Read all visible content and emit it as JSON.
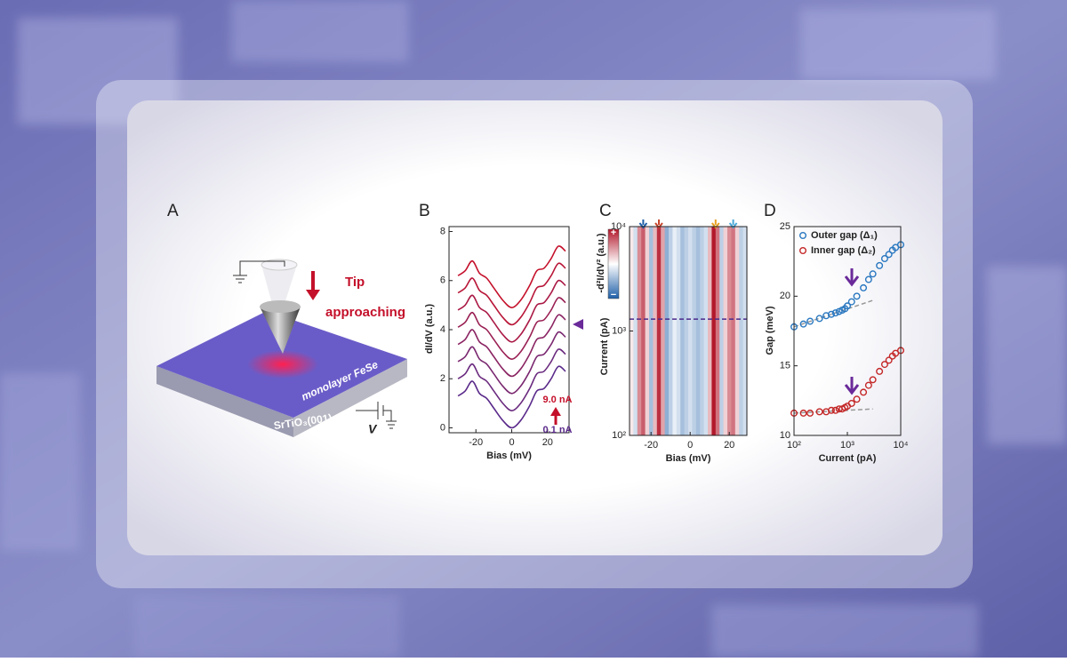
{
  "panel_a": {
    "label": "A",
    "tip_label": [
      "Tip",
      "approaching"
    ],
    "layer_label": "monolayer FeSe",
    "substrate_label": "SrTiO₃(001)",
    "voltage_label": "V"
  },
  "chart_data": [
    {
      "type": "line",
      "panel_label": "B",
      "x_label": "Bias (mV)",
      "y_label": "dI/dV (a.u.)",
      "x": [
        -30,
        -26,
        -22,
        -18,
        -14,
        -10,
        -5,
        0,
        5,
        10,
        14,
        18,
        22,
        26,
        30
      ],
      "series": [
        {
          "color": "#5a2a8a",
          "values": [
            1.3,
            1.5,
            1.9,
            1.4,
            1.2,
            0.8,
            0.3,
            0.0,
            0.3,
            0.9,
            1.5,
            1.6,
            2.0,
            2.5,
            2.3
          ]
        },
        {
          "color": "#6a2a7e",
          "values": [
            2.0,
            2.2,
            2.6,
            2.1,
            1.9,
            1.5,
            1.0,
            0.7,
            1.0,
            1.6,
            2.2,
            2.3,
            2.7,
            3.2,
            3.0
          ]
        },
        {
          "color": "#7a2870",
          "values": [
            2.7,
            2.9,
            3.3,
            2.8,
            2.6,
            2.2,
            1.7,
            1.4,
            1.7,
            2.3,
            2.9,
            3.0,
            3.4,
            3.9,
            3.7
          ]
        },
        {
          "color": "#8a2462",
          "values": [
            3.4,
            3.6,
            4.0,
            3.5,
            3.3,
            2.9,
            2.4,
            2.1,
            2.4,
            3.0,
            3.6,
            3.7,
            4.1,
            4.6,
            4.4
          ]
        },
        {
          "color": "#9a2054",
          "values": [
            4.1,
            4.3,
            4.7,
            4.2,
            4.0,
            3.6,
            3.1,
            2.8,
            3.1,
            3.7,
            4.3,
            4.4,
            4.8,
            5.3,
            5.1
          ]
        },
        {
          "color": "#aa1a46",
          "values": [
            4.8,
            5.0,
            5.4,
            4.9,
            4.7,
            4.3,
            3.8,
            3.5,
            3.8,
            4.4,
            5.0,
            5.1,
            5.5,
            6.0,
            5.8
          ]
        },
        {
          "color": "#b81638",
          "values": [
            5.5,
            5.7,
            6.1,
            5.6,
            5.4,
            5.0,
            4.5,
            4.2,
            4.5,
            5.1,
            5.7,
            5.8,
            6.2,
            6.7,
            6.5
          ]
        },
        {
          "color": "#c4102a",
          "values": [
            6.2,
            6.4,
            6.8,
            6.3,
            6.1,
            5.7,
            5.2,
            4.9,
            5.2,
            5.8,
            6.4,
            6.5,
            6.9,
            7.4,
            7.2
          ]
        }
      ],
      "xlim": [
        -35,
        32
      ],
      "xticks": [
        -20,
        0,
        20
      ],
      "ylim": [
        -0.2,
        8.2
      ],
      "yticks": [
        0,
        2,
        4,
        6,
        8
      ],
      "annotations": [
        {
          "text": "9.0 nA",
          "color": "#c4102a"
        },
        {
          "text": "0.1 nA",
          "color": "#5a2a8a"
        }
      ]
    },
    {
      "type": "heatmap",
      "panel_label": "C",
      "x_label": "Bias (mV)",
      "y_label": "Current (pA)",
      "colorbar_label": "-d²I/dV² (a.u.)",
      "x": [
        -30,
        -28,
        -26,
        -24,
        -22,
        -20,
        -18,
        -16,
        -14,
        -12,
        -10,
        -8,
        -6,
        -4,
        -2,
        0,
        2,
        4,
        6,
        8,
        10,
        12,
        14,
        16,
        18,
        20,
        22,
        24,
        26,
        28
      ],
      "z": [
        0.1,
        -0.2,
        0.5,
        0.7,
        0.2,
        -0.4,
        0.3,
        0.9,
        0.4,
        -0.5,
        -0.3,
        -0.1,
        -0.2,
        -0.4,
        -0.3,
        -0.2,
        -0.3,
        -0.4,
        -0.3,
        -0.2,
        0.3,
        1.0,
        0.6,
        -0.3,
        0.2,
        0.5,
        0.6,
        0.2,
        -0.3,
        -0.2
      ],
      "xlim": [
        -31,
        29
      ],
      "xticks": [
        -20,
        0,
        20
      ],
      "y_scale": "log",
      "ylim": [
        100,
        10000
      ],
      "yticks": [
        {
          "value": 100,
          "label": "10²"
        },
        {
          "value": 1000,
          "label": "10³"
        },
        {
          "value": 10000,
          "label": "10⁴"
        }
      ],
      "zlim": [
        -1,
        1
      ],
      "zticks": [
        {
          "value": 1,
          "label": "+"
        },
        {
          "value": -1,
          "label": "−"
        }
      ],
      "reference_line": 1300,
      "reference_color": "#4b2a8c",
      "markers": [
        {
          "x": -24,
          "color": "#1f5fa8"
        },
        {
          "x": -16,
          "color": "#c8452a"
        },
        {
          "x": 13,
          "color": "#e8a020"
        },
        {
          "x": 22,
          "color": "#4aa8d8"
        }
      ]
    },
    {
      "type": "scatter",
      "panel_label": "D",
      "x_label": "Current (pA)",
      "y_label": "Gap (meV)",
      "x_scale": "log",
      "x": [
        100,
        150,
        200,
        300,
        400,
        500,
        600,
        700,
        800,
        900,
        1000,
        1200,
        1500,
        2000,
        2500,
        3000,
        4000,
        5000,
        6000,
        7000,
        8000,
        10000
      ],
      "series": [
        {
          "name": "Outer gap (Δ₁)",
          "color": "#2a78c0",
          "values": [
            17.8,
            18.0,
            18.2,
            18.4,
            18.6,
            18.7,
            18.8,
            18.9,
            19.0,
            19.1,
            19.3,
            19.6,
            20.0,
            20.6,
            21.2,
            21.6,
            22.2,
            22.7,
            23.0,
            23.3,
            23.5,
            23.7
          ]
        },
        {
          "name": "Inner gap (Δ₂)",
          "color": "#c42828",
          "values": [
            11.6,
            11.6,
            11.6,
            11.7,
            11.7,
            11.8,
            11.8,
            11.9,
            11.9,
            12.0,
            12.1,
            12.3,
            12.6,
            13.1,
            13.6,
            14.0,
            14.6,
            15.1,
            15.4,
            15.7,
            15.9,
            16.1
          ]
        }
      ],
      "fits": [
        {
          "x": [
            100,
            3000
          ],
          "y": [
            17.8,
            19.7
          ]
        },
        {
          "x": [
            100,
            3000
          ],
          "y": [
            11.6,
            11.9
          ]
        }
      ],
      "xlim": [
        100,
        10000
      ],
      "xticks": [
        {
          "value": 100,
          "label": "10²"
        },
        {
          "value": 1000,
          "label": "10³"
        },
        {
          "value": 10000,
          "label": "10⁴"
        }
      ],
      "ylim": [
        10,
        25
      ],
      "yticks": [
        10,
        15,
        20,
        25
      ]
    }
  ]
}
